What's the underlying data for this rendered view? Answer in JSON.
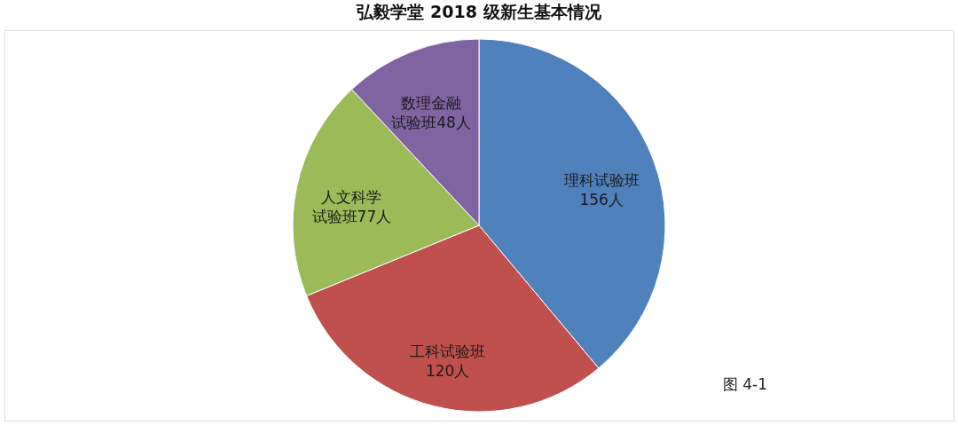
{
  "chart_data": {
    "type": "pie",
    "title": "弘毅学堂 2018 级新生基本情况",
    "categories": [
      "理科试验班",
      "工科试验班",
      "人文科学试验班",
      "数理金融试验班"
    ],
    "values": [
      156,
      120,
      77,
      48
    ],
    "value_labels": [
      "156人",
      "120人",
      "77人",
      "48人"
    ],
    "colors": [
      "#4f81bd",
      "#c0504d",
      "#9bbb59",
      "#8064a2"
    ],
    "legend": false,
    "annotations": [
      "图 4-1"
    ]
  }
}
